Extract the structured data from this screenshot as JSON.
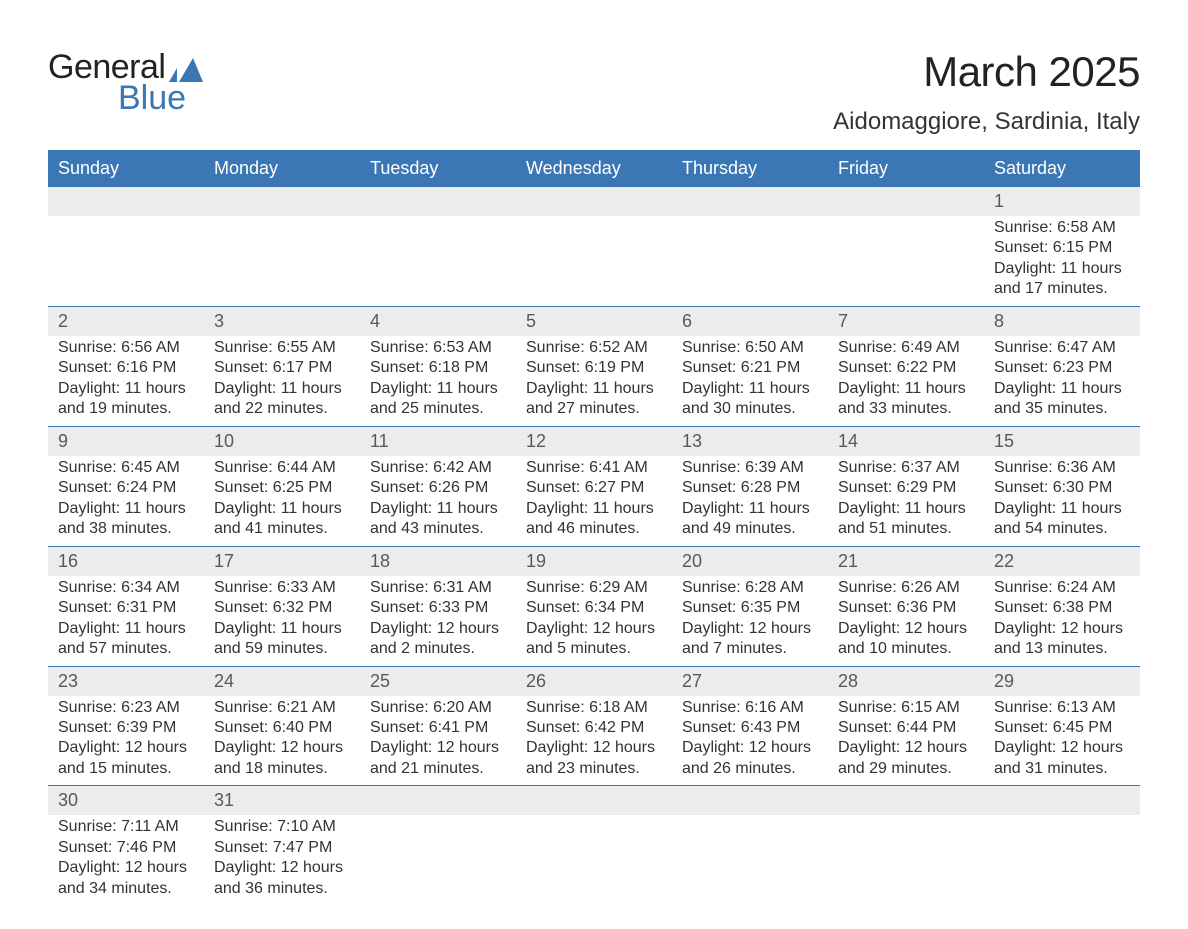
{
  "logo": {
    "text1": "General",
    "text2": "Blue",
    "chart_color": "#3b76b5"
  },
  "header": {
    "title": "March 2025",
    "location": "Aidomaggiore, Sardinia, Italy"
  },
  "calendar": {
    "theme": {
      "header_bg": "#3b76b5",
      "header_fg": "#ffffff",
      "daynum_bg": "#ececec",
      "daynum_fg": "#595959",
      "row_divider": "#3b76b5",
      "body_fg": "#333333",
      "body_bg": "#ffffff",
      "font_size_header": 18,
      "font_size_daynum": 18,
      "font_size_detail": 16
    },
    "weekdays": [
      "Sunday",
      "Monday",
      "Tuesday",
      "Wednesday",
      "Thursday",
      "Friday",
      "Saturday"
    ],
    "weeks": [
      [
        null,
        null,
        null,
        null,
        null,
        null,
        {
          "d": "1",
          "sunrise": "6:58 AM",
          "sunset": "6:15 PM",
          "daylight": "11 hours and 17 minutes."
        }
      ],
      [
        {
          "d": "2",
          "sunrise": "6:56 AM",
          "sunset": "6:16 PM",
          "daylight": "11 hours and 19 minutes."
        },
        {
          "d": "3",
          "sunrise": "6:55 AM",
          "sunset": "6:17 PM",
          "daylight": "11 hours and 22 minutes."
        },
        {
          "d": "4",
          "sunrise": "6:53 AM",
          "sunset": "6:18 PM",
          "daylight": "11 hours and 25 minutes."
        },
        {
          "d": "5",
          "sunrise": "6:52 AM",
          "sunset": "6:19 PM",
          "daylight": "11 hours and 27 minutes."
        },
        {
          "d": "6",
          "sunrise": "6:50 AM",
          "sunset": "6:21 PM",
          "daylight": "11 hours and 30 minutes."
        },
        {
          "d": "7",
          "sunrise": "6:49 AM",
          "sunset": "6:22 PM",
          "daylight": "11 hours and 33 minutes."
        },
        {
          "d": "8",
          "sunrise": "6:47 AM",
          "sunset": "6:23 PM",
          "daylight": "11 hours and 35 minutes."
        }
      ],
      [
        {
          "d": "9",
          "sunrise": "6:45 AM",
          "sunset": "6:24 PM",
          "daylight": "11 hours and 38 minutes."
        },
        {
          "d": "10",
          "sunrise": "6:44 AM",
          "sunset": "6:25 PM",
          "daylight": "11 hours and 41 minutes."
        },
        {
          "d": "11",
          "sunrise": "6:42 AM",
          "sunset": "6:26 PM",
          "daylight": "11 hours and 43 minutes."
        },
        {
          "d": "12",
          "sunrise": "6:41 AM",
          "sunset": "6:27 PM",
          "daylight": "11 hours and 46 minutes."
        },
        {
          "d": "13",
          "sunrise": "6:39 AM",
          "sunset": "6:28 PM",
          "daylight": "11 hours and 49 minutes."
        },
        {
          "d": "14",
          "sunrise": "6:37 AM",
          "sunset": "6:29 PM",
          "daylight": "11 hours and 51 minutes."
        },
        {
          "d": "15",
          "sunrise": "6:36 AM",
          "sunset": "6:30 PM",
          "daylight": "11 hours and 54 minutes."
        }
      ],
      [
        {
          "d": "16",
          "sunrise": "6:34 AM",
          "sunset": "6:31 PM",
          "daylight": "11 hours and 57 minutes."
        },
        {
          "d": "17",
          "sunrise": "6:33 AM",
          "sunset": "6:32 PM",
          "daylight": "11 hours and 59 minutes."
        },
        {
          "d": "18",
          "sunrise": "6:31 AM",
          "sunset": "6:33 PM",
          "daylight": "12 hours and 2 minutes."
        },
        {
          "d": "19",
          "sunrise": "6:29 AM",
          "sunset": "6:34 PM",
          "daylight": "12 hours and 5 minutes."
        },
        {
          "d": "20",
          "sunrise": "6:28 AM",
          "sunset": "6:35 PM",
          "daylight": "12 hours and 7 minutes."
        },
        {
          "d": "21",
          "sunrise": "6:26 AM",
          "sunset": "6:36 PM",
          "daylight": "12 hours and 10 minutes."
        },
        {
          "d": "22",
          "sunrise": "6:24 AM",
          "sunset": "6:38 PM",
          "daylight": "12 hours and 13 minutes."
        }
      ],
      [
        {
          "d": "23",
          "sunrise": "6:23 AM",
          "sunset": "6:39 PM",
          "daylight": "12 hours and 15 minutes."
        },
        {
          "d": "24",
          "sunrise": "6:21 AM",
          "sunset": "6:40 PM",
          "daylight": "12 hours and 18 minutes."
        },
        {
          "d": "25",
          "sunrise": "6:20 AM",
          "sunset": "6:41 PM",
          "daylight": "12 hours and 21 minutes."
        },
        {
          "d": "26",
          "sunrise": "6:18 AM",
          "sunset": "6:42 PM",
          "daylight": "12 hours and 23 minutes."
        },
        {
          "d": "27",
          "sunrise": "6:16 AM",
          "sunset": "6:43 PM",
          "daylight": "12 hours and 26 minutes."
        },
        {
          "d": "28",
          "sunrise": "6:15 AM",
          "sunset": "6:44 PM",
          "daylight": "12 hours and 29 minutes."
        },
        {
          "d": "29",
          "sunrise": "6:13 AM",
          "sunset": "6:45 PM",
          "daylight": "12 hours and 31 minutes."
        }
      ],
      [
        {
          "d": "30",
          "sunrise": "7:11 AM",
          "sunset": "7:46 PM",
          "daylight": "12 hours and 34 minutes."
        },
        {
          "d": "31",
          "sunrise": "7:10 AM",
          "sunset": "7:47 PM",
          "daylight": "12 hours and 36 minutes."
        },
        null,
        null,
        null,
        null,
        null
      ]
    ],
    "labels": {
      "sunrise": "Sunrise: ",
      "sunset": "Sunset: ",
      "daylight": "Daylight: "
    }
  }
}
